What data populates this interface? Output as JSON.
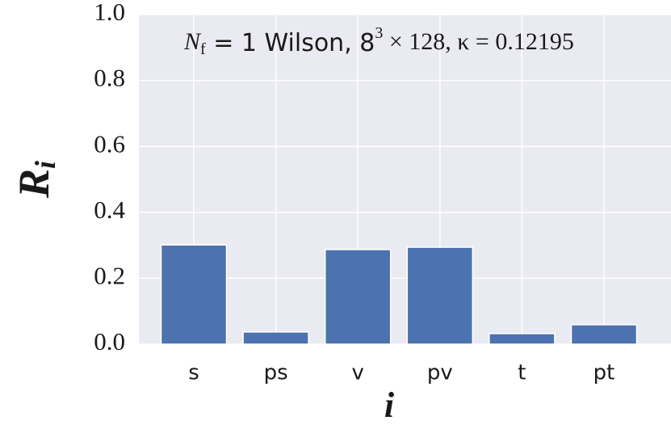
{
  "chart_data": {
    "type": "bar",
    "annotation": [
      "N",
      "f",
      " = 1 Wilson, 8",
      "3",
      " × 128, κ = 0.12195"
    ],
    "ylabel": [
      "R",
      "i"
    ],
    "xlabel": "i",
    "categories": [
      "s",
      "ps",
      "v",
      "pv",
      "t",
      "pt"
    ],
    "values": [
      0.301,
      0.037,
      0.287,
      0.294,
      0.032,
      0.059
    ],
    "color": "#4c72b0",
    "ylim": [
      0,
      1
    ],
    "yticks": [
      {
        "value": 0,
        "label": "0.0"
      },
      0.2,
      0.4,
      0.6,
      0.8,
      {
        "value": 1,
        "label": "1.0"
      }
    ],
    "grid": true
  }
}
